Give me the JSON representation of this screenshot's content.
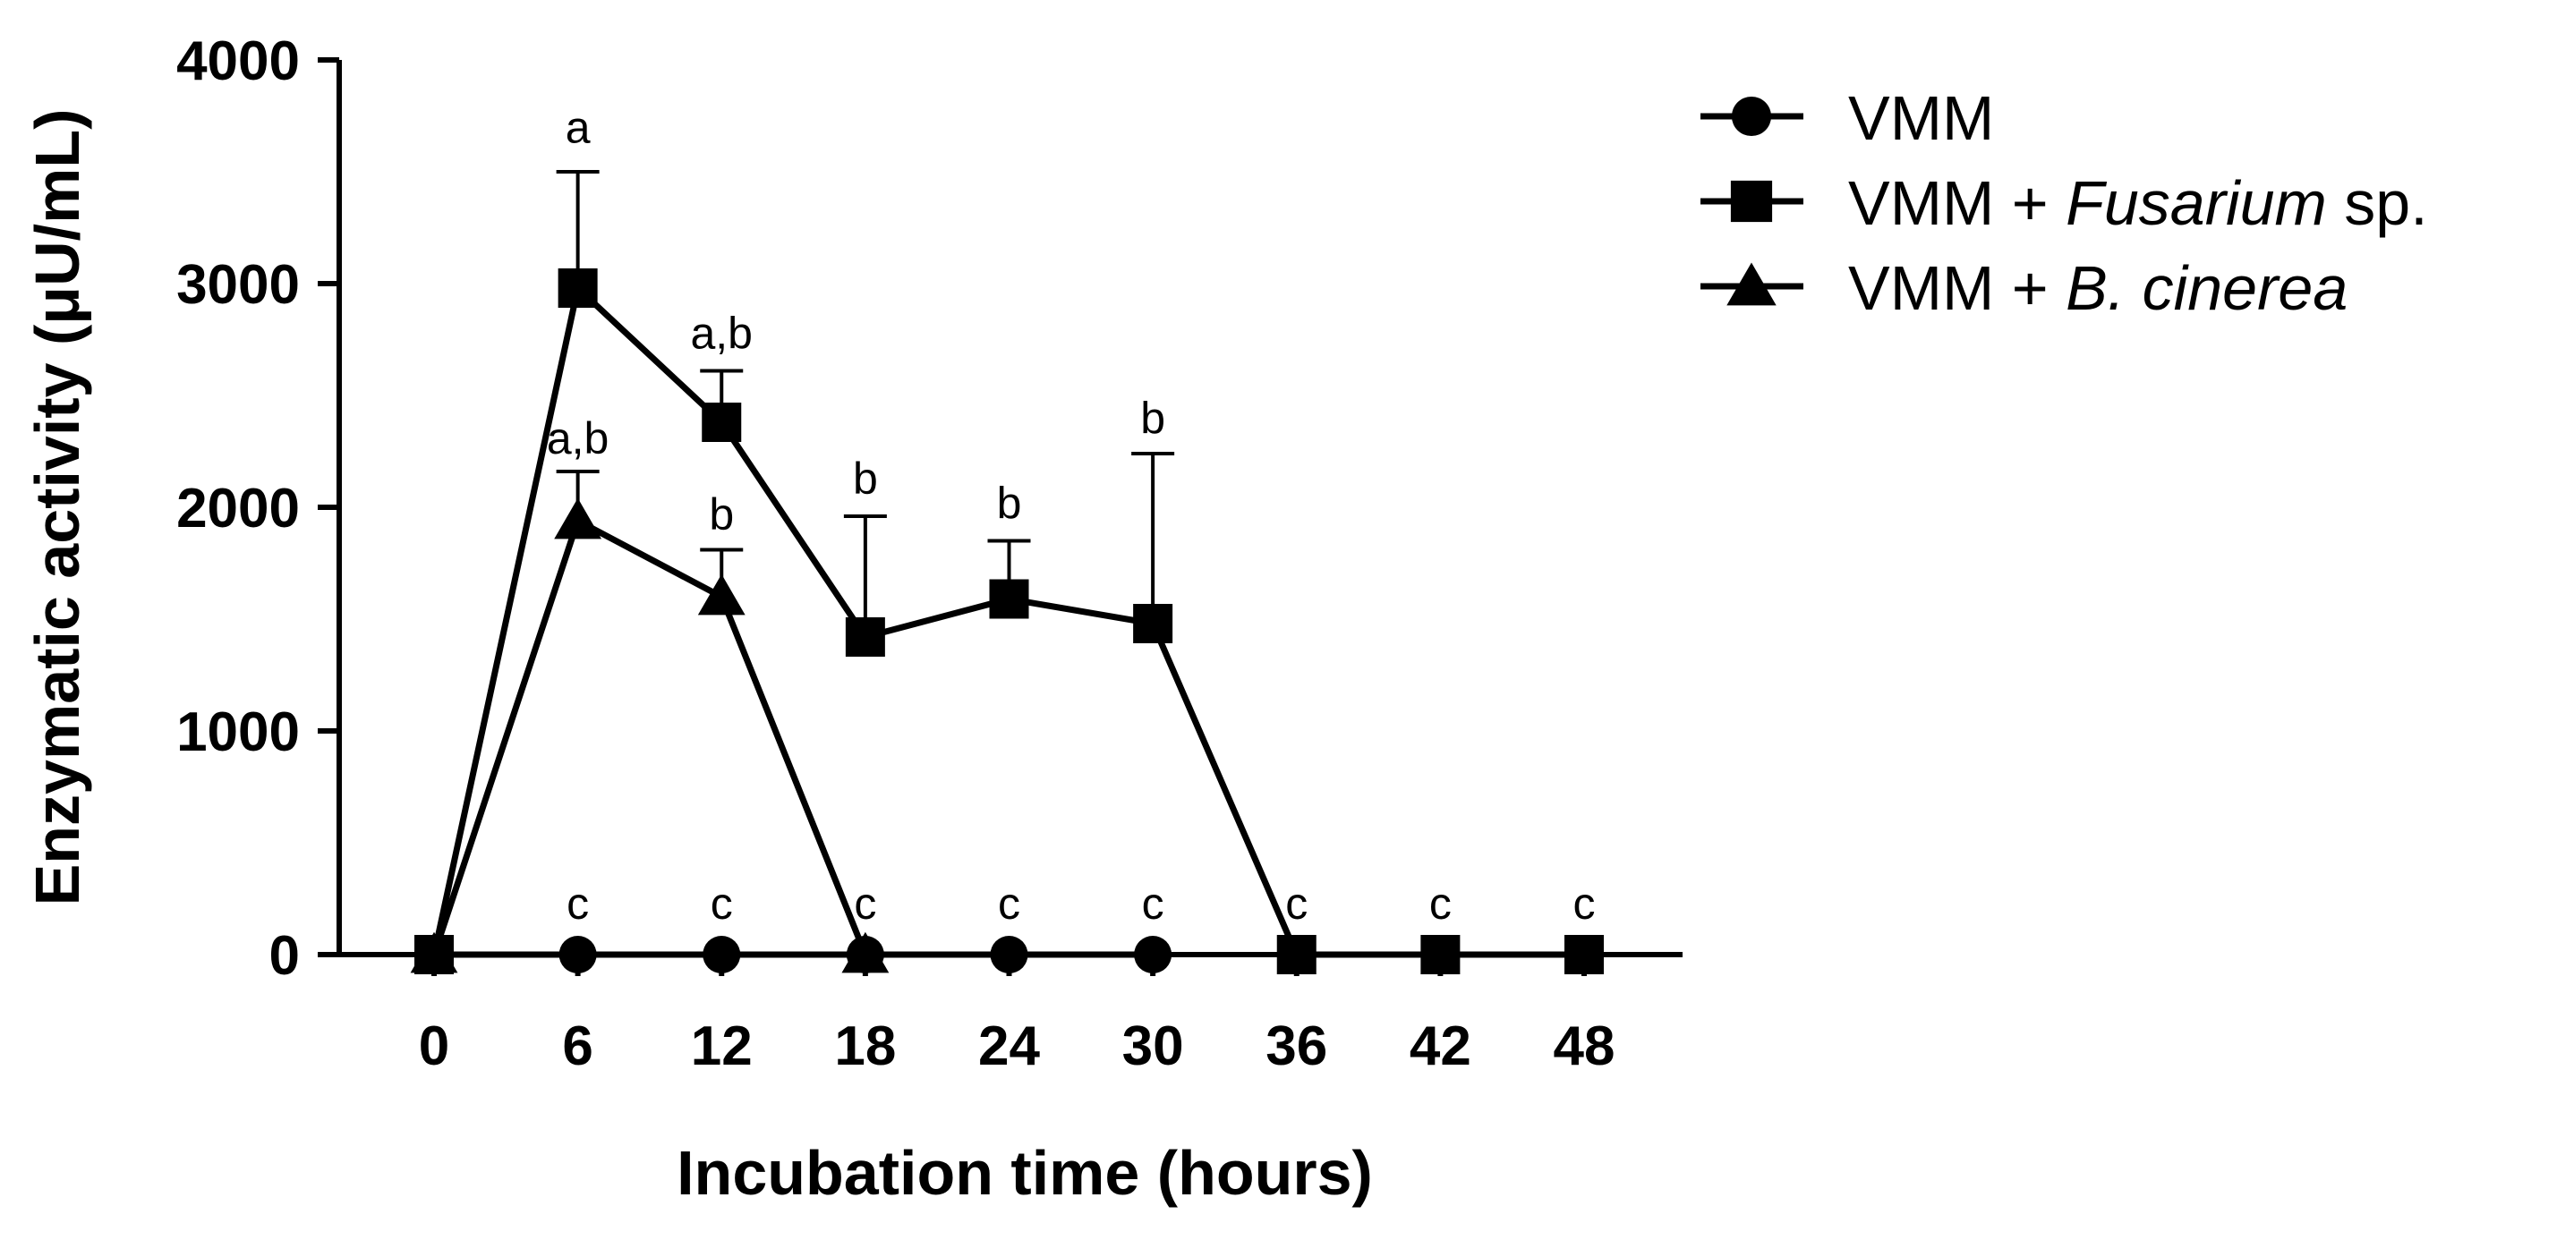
{
  "chart_data": {
    "type": "line",
    "xlabel": "Incubation time (hours)",
    "ylabel": "Enzymatic activity (μU/mL)",
    "xlim": [
      0,
      48
    ],
    "ylim": [
      0,
      4000
    ],
    "x_ticks": [
      "0",
      "6",
      "12",
      "18",
      "24",
      "30",
      "36",
      "42",
      "48"
    ],
    "y_ticks": [
      "0",
      "1000",
      "2000",
      "3000",
      "4000"
    ],
    "grid": false,
    "legend_position": "top-right, outside plot",
    "series": [
      {
        "name": "VMM",
        "legend_prefix": "VMM",
        "legend_italic": "",
        "legend_suffix": "",
        "marker": "circle",
        "color": "#000000",
        "points": [
          {
            "x": 0,
            "y": 0
          },
          {
            "x": 6,
            "y": 0
          },
          {
            "x": 12,
            "y": 0
          },
          {
            "x": 18,
            "y": 0
          },
          {
            "x": 24,
            "y": 0
          },
          {
            "x": 30,
            "y": 0
          }
        ]
      },
      {
        "name": "VMM + Fusarium sp.",
        "legend_prefix": "VMM + ",
        "legend_italic": "Fusarium",
        "legend_suffix": " sp.",
        "marker": "square",
        "color": "#000000",
        "points": [
          {
            "x": 0,
            "y": 0
          },
          {
            "x": 6,
            "y": 2980,
            "err": 520
          },
          {
            "x": 12,
            "y": 2380,
            "err": 230
          },
          {
            "x": 18,
            "y": 1420,
            "err": 540
          },
          {
            "x": 24,
            "y": 1590,
            "err": 260
          },
          {
            "x": 30,
            "y": 1480,
            "err": 760
          },
          {
            "x": 36,
            "y": 0
          },
          {
            "x": 42,
            "y": 0
          },
          {
            "x": 48,
            "y": 0
          }
        ]
      },
      {
        "name": "VMM + B. cinerea",
        "legend_prefix": "VMM + ",
        "legend_italic": "B. cinerea",
        "legend_suffix": "",
        "marker": "triangle",
        "color": "#000000",
        "points": [
          {
            "x": 0,
            "y": 0
          },
          {
            "x": 6,
            "y": 1940,
            "err": 220
          },
          {
            "x": 12,
            "y": 1600,
            "err": 210
          },
          {
            "x": 18,
            "y": 0
          }
        ]
      }
    ],
    "annotations": [
      {
        "x": 6,
        "y": 3630,
        "text": "a"
      },
      {
        "x": 12,
        "y": 2710,
        "text": "a,b"
      },
      {
        "x": 6,
        "y": 2240,
        "text": "a,b"
      },
      {
        "x": 12,
        "y": 1900,
        "text": "b"
      },
      {
        "x": 18,
        "y": 2060,
        "text": "b"
      },
      {
        "x": 24,
        "y": 1950,
        "text": "b"
      },
      {
        "x": 30,
        "y": 2330,
        "text": "b"
      },
      {
        "x": 6,
        "y": 160,
        "text": "c"
      },
      {
        "x": 12,
        "y": 160,
        "text": "c"
      },
      {
        "x": 18,
        "y": 160,
        "text": "c"
      },
      {
        "x": 24,
        "y": 160,
        "text": "c"
      },
      {
        "x": 30,
        "y": 160,
        "text": "c"
      },
      {
        "x": 36,
        "y": 160,
        "text": "c"
      },
      {
        "x": 42,
        "y": 160,
        "text": "c"
      },
      {
        "x": 48,
        "y": 160,
        "text": "c"
      }
    ]
  }
}
